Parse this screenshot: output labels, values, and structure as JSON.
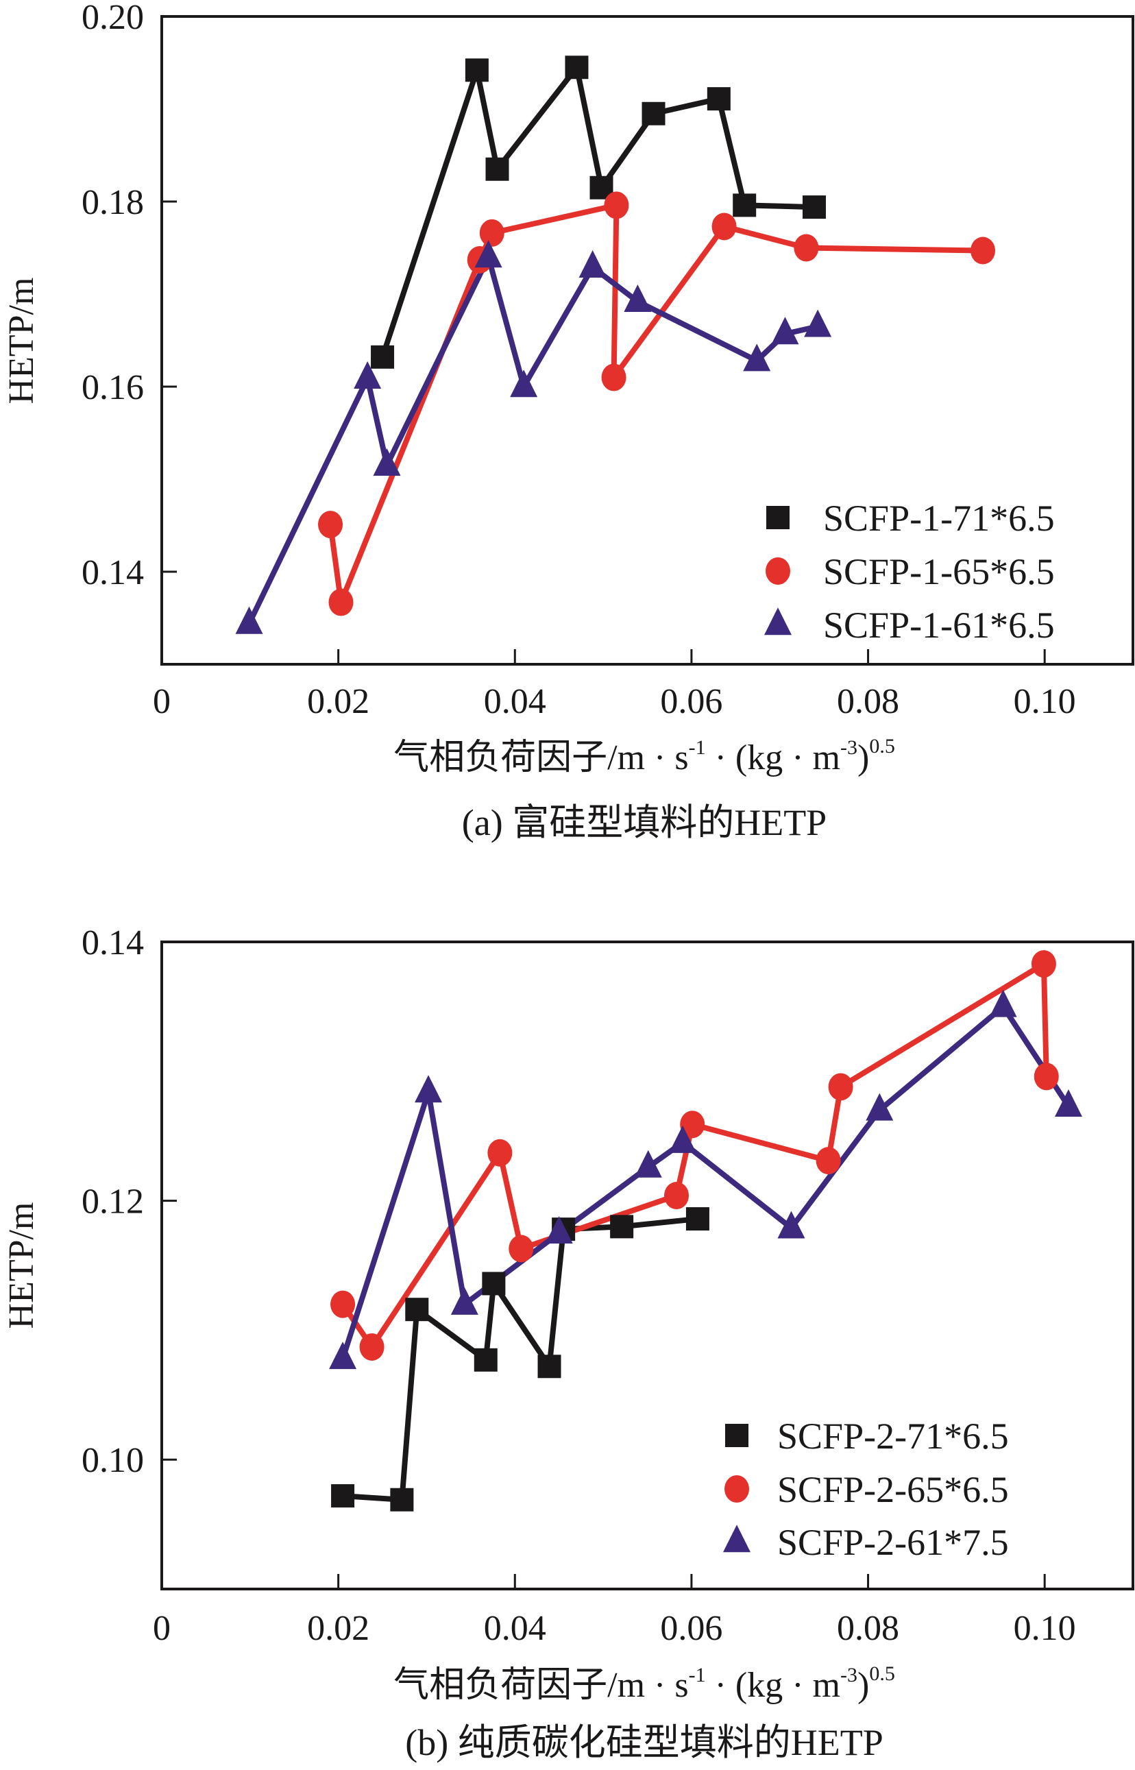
{
  "chart_data": [
    {
      "id": "a",
      "type": "line",
      "caption": "(a) 富硅型填料的HETP",
      "xlabel": {
        "main": "气相负荷因子/m · s",
        "sup1": "-1",
        "mid": " · (kg · m",
        "sup2": "-3",
        "end": ")",
        "sup3": "0.5"
      },
      "ylabel": "HETP/m",
      "xlim": [
        0,
        0.11
      ],
      "ylim": [
        0.13,
        0.2
      ],
      "xticks": [
        0,
        0.02,
        0.04,
        0.06,
        0.08,
        0.1
      ],
      "xtick_labels": [
        "0",
        "0.02",
        "0.04",
        "0.06",
        "0.08",
        "0.10"
      ],
      "yticks": [
        0.14,
        0.16,
        0.18,
        0.2
      ],
      "ytick_labels": [
        "0.14",
        "0.16",
        "0.18",
        "0.20"
      ],
      "grid": false,
      "legend_position": "bottom-right",
      "series": [
        {
          "name": "SCFP-1-71*6.5",
          "marker": "square",
          "color": "#1a1818",
          "x": [
            0.025,
            0.0357,
            0.038,
            0.047,
            0.0498,
            0.0557,
            0.0631,
            0.066,
            0.0739
          ],
          "y": [
            0.1632,
            0.1942,
            0.1835,
            0.1945,
            0.1815,
            0.1895,
            0.1911,
            0.1796,
            0.1794
          ]
        },
        {
          "name": "SCFP-1-65*6.5",
          "marker": "circle",
          "color": "#e5312b",
          "x": [
            0.0191,
            0.0203,
            0.036,
            0.0374,
            0.0515,
            0.0512,
            0.0637,
            0.073,
            0.093
          ],
          "y": [
            0.1451,
            0.1367,
            0.1737,
            0.1766,
            0.1796,
            0.161,
            0.1773,
            0.175,
            0.1747
          ]
        },
        {
          "name": "SCFP-1-61*6.5",
          "marker": "triangle",
          "color": "#3d2a7e",
          "x": [
            0.0099,
            0.0233,
            0.0255,
            0.037,
            0.041,
            0.0488,
            0.0539,
            0.0674,
            0.0706,
            0.0743
          ],
          "y": [
            0.1344,
            0.1609,
            0.1515,
            0.174,
            0.16,
            0.1729,
            0.1692,
            0.1628,
            0.1657,
            0.1665
          ]
        }
      ]
    },
    {
      "id": "b",
      "type": "line",
      "caption": "(b) 纯质碳化硅型填料的HETP",
      "xlabel": {
        "main": "气相负荷因子/m · s",
        "sup1": "-1",
        "mid": " · (kg · m",
        "sup2": "-3",
        "end": ")",
        "sup3": "0.5"
      },
      "ylabel": "HETP/m",
      "xlim": [
        0,
        0.11
      ],
      "ylim": [
        0.09,
        0.14
      ],
      "xticks": [
        0,
        0.02,
        0.04,
        0.06,
        0.08,
        0.1
      ],
      "xtick_labels": [
        "0",
        "0.02",
        "0.04",
        "0.06",
        "0.08",
        "0.10"
      ],
      "yticks": [
        0.1,
        0.12,
        0.14
      ],
      "ytick_labels": [
        "0.10",
        "0.12",
        "0.14"
      ],
      "grid": false,
      "legend_position": "bottom-right",
      "series": [
        {
          "name": "SCFP-2-71*6.5",
          "marker": "square",
          "color": "#1a1818",
          "x": [
            0.0205,
            0.0272,
            0.0289,
            0.0367,
            0.0376,
            0.0439,
            0.0455,
            0.0521,
            0.0607
          ],
          "y": [
            0.0972,
            0.0969,
            0.1116,
            0.1077,
            0.1136,
            0.1072,
            0.1178,
            0.118,
            0.1186
          ]
        },
        {
          "name": "SCFP-2-65*6.5",
          "marker": "circle",
          "color": "#e5312b",
          "x": [
            0.0205,
            0.0238,
            0.0383,
            0.0407,
            0.0583,
            0.0601,
            0.0755,
            0.0769,
            0.0999,
            0.1002
          ],
          "y": [
            0.112,
            0.1087,
            0.1237,
            0.1163,
            0.1204,
            0.1259,
            0.1231,
            0.1288,
            0.1383,
            0.1296
          ]
        },
        {
          "name": "SCFP-2-61*7.5",
          "marker": "triangle",
          "color": "#3d2a7e",
          "x": [
            0.0205,
            0.0302,
            0.0343,
            0.045,
            0.0551,
            0.059,
            0.0713,
            0.0813,
            0.0953,
            0.1027
          ],
          "y": [
            0.1078,
            0.1284,
            0.112,
            0.1175,
            0.1226,
            0.1245,
            0.1179,
            0.127,
            0.135,
            0.1273
          ]
        }
      ]
    }
  ]
}
